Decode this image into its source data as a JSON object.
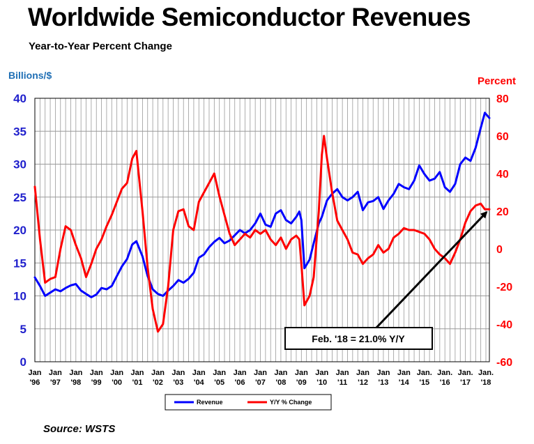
{
  "header": {
    "title": "Worldwide Semiconductor Revenues",
    "subtitle": "Year-to-Year Percent Change",
    "left_axis_label": "Billions/$",
    "right_axis_label": "Percent",
    "source": "Source: WSTS"
  },
  "colors": {
    "revenue": "#0000ff",
    "yoy": "#ff0000",
    "left_axis": "#1f1fcc",
    "right_axis": "#ff0000",
    "grid": "#999999"
  },
  "chart_data": {
    "type": "line",
    "title": "Worldwide Semiconductor Revenues",
    "subtitle": "Year-to-Year Percent Change",
    "y_left": {
      "label": "Billions/$",
      "min": 0,
      "max": 40,
      "ticks": [
        "0",
        "5",
        "10",
        "15",
        "20",
        "25",
        "30",
        "35",
        "40"
      ]
    },
    "y_right": {
      "label": "Percent",
      "min": -60,
      "max": 80,
      "ticks": [
        "-60",
        "-40",
        "-20",
        "0",
        "20",
        "40",
        "60",
        "80"
      ]
    },
    "x_start": 1996,
    "x_end": 2018.17,
    "x_ticks": [
      {
        "top": "Jan",
        "bottom": "'96"
      },
      {
        "top": "Jan",
        "bottom": "'97"
      },
      {
        "top": "Jan",
        "bottom": "'98"
      },
      {
        "top": "Jan",
        "bottom": "'99"
      },
      {
        "top": "Jan",
        "bottom": "'00"
      },
      {
        "top": "Jan",
        "bottom": "'01"
      },
      {
        "top": "Jan",
        "bottom": "'02"
      },
      {
        "top": "Jan",
        "bottom": "'03"
      },
      {
        "top": "Jan",
        "bottom": "'04"
      },
      {
        "top": "Jan",
        "bottom": "'05"
      },
      {
        "top": "Jan",
        "bottom": "'06"
      },
      {
        "top": "Jan",
        "bottom": "'07"
      },
      {
        "top": "Jan",
        "bottom": "'08"
      },
      {
        "top": "Jan",
        "bottom": "'09"
      },
      {
        "top": "Jan",
        "bottom": "'10"
      },
      {
        "top": "Jan",
        "bottom": "'11"
      },
      {
        "top": "Jan",
        "bottom": "'12"
      },
      {
        "top": "Jan",
        "bottom": "'13"
      },
      {
        "top": "Jan",
        "bottom": "'14"
      },
      {
        "top": "Jan.",
        "bottom": "'15"
      },
      {
        "top": "Jan.",
        "bottom": "'16"
      },
      {
        "top": "Jan.",
        "bottom": "'17"
      },
      {
        "top": "Jan.",
        "bottom": "'18"
      }
    ],
    "grid": true,
    "legend_position": "bottom-center",
    "series": [
      {
        "name": "Revenue",
        "axis": "left",
        "points": [
          [
            1996.0,
            12.8
          ],
          [
            1996.25,
            11.5
          ],
          [
            1996.5,
            10.0
          ],
          [
            1996.75,
            10.5
          ],
          [
            1997.0,
            11.0
          ],
          [
            1997.25,
            10.7
          ],
          [
            1997.5,
            11.2
          ],
          [
            1997.75,
            11.6
          ],
          [
            1998.0,
            11.8
          ],
          [
            1998.25,
            10.8
          ],
          [
            1998.5,
            10.3
          ],
          [
            1998.75,
            9.8
          ],
          [
            1999.0,
            10.2
          ],
          [
            1999.25,
            11.2
          ],
          [
            1999.5,
            11.0
          ],
          [
            1999.75,
            11.5
          ],
          [
            2000.0,
            13.0
          ],
          [
            2000.25,
            14.5
          ],
          [
            2000.5,
            15.6
          ],
          [
            2000.75,
            17.8
          ],
          [
            2000.95,
            18.3
          ],
          [
            2001.25,
            16.0
          ],
          [
            2001.5,
            13.0
          ],
          [
            2001.75,
            11.0
          ],
          [
            2002.0,
            10.3
          ],
          [
            2002.25,
            10.0
          ],
          [
            2002.5,
            10.8
          ],
          [
            2002.75,
            11.5
          ],
          [
            2003.0,
            12.4
          ],
          [
            2003.25,
            12.0
          ],
          [
            2003.5,
            12.6
          ],
          [
            2003.75,
            13.5
          ],
          [
            2004.0,
            15.8
          ],
          [
            2004.25,
            16.3
          ],
          [
            2004.5,
            17.4
          ],
          [
            2004.75,
            18.2
          ],
          [
            2005.0,
            18.8
          ],
          [
            2005.25,
            18.0
          ],
          [
            2005.5,
            18.4
          ],
          [
            2005.75,
            19.2
          ],
          [
            2006.0,
            20.0
          ],
          [
            2006.25,
            19.5
          ],
          [
            2006.5,
            20.0
          ],
          [
            2006.75,
            21.0
          ],
          [
            2007.0,
            22.5
          ],
          [
            2007.25,
            20.8
          ],
          [
            2007.5,
            20.5
          ],
          [
            2007.75,
            22.5
          ],
          [
            2008.0,
            23.0
          ],
          [
            2008.25,
            21.5
          ],
          [
            2008.5,
            21.0
          ],
          [
            2008.75,
            22.0
          ],
          [
            2008.9,
            22.8
          ],
          [
            2009.0,
            21.5
          ],
          [
            2009.15,
            14.2
          ],
          [
            2009.4,
            15.5
          ],
          [
            2009.6,
            18.0
          ],
          [
            2009.85,
            21.0
          ],
          [
            2010.0,
            22.0
          ],
          [
            2010.25,
            24.5
          ],
          [
            2010.5,
            25.5
          ],
          [
            2010.75,
            26.2
          ],
          [
            2011.0,
            25.0
          ],
          [
            2011.25,
            24.5
          ],
          [
            2011.5,
            25.0
          ],
          [
            2011.75,
            25.8
          ],
          [
            2012.0,
            23.0
          ],
          [
            2012.25,
            24.2
          ],
          [
            2012.5,
            24.4
          ],
          [
            2012.75,
            25.0
          ],
          [
            2013.0,
            23.2
          ],
          [
            2013.25,
            24.5
          ],
          [
            2013.5,
            25.5
          ],
          [
            2013.75,
            27.0
          ],
          [
            2014.0,
            26.5
          ],
          [
            2014.25,
            26.2
          ],
          [
            2014.5,
            27.5
          ],
          [
            2014.75,
            29.8
          ],
          [
            2015.0,
            28.5
          ],
          [
            2015.25,
            27.5
          ],
          [
            2015.5,
            27.8
          ],
          [
            2015.75,
            28.8
          ],
          [
            2016.0,
            26.5
          ],
          [
            2016.25,
            25.8
          ],
          [
            2016.5,
            27.0
          ],
          [
            2016.75,
            30.0
          ],
          [
            2017.0,
            31.0
          ],
          [
            2017.25,
            30.5
          ],
          [
            2017.5,
            32.5
          ],
          [
            2017.75,
            35.5
          ],
          [
            2017.95,
            37.8
          ],
          [
            2018.17,
            37.0
          ]
        ]
      },
      {
        "name": "Y/Y % Change",
        "axis": "right",
        "points": [
          [
            1996.0,
            33.0
          ],
          [
            1996.25,
            5.0
          ],
          [
            1996.5,
            -18.0
          ],
          [
            1996.75,
            -16.0
          ],
          [
            1997.0,
            -15.0
          ],
          [
            1997.25,
            0.0
          ],
          [
            1997.5,
            12.0
          ],
          [
            1997.75,
            10.0
          ],
          [
            1998.0,
            2.0
          ],
          [
            1998.25,
            -5.0
          ],
          [
            1998.5,
            -15.0
          ],
          [
            1998.75,
            -8.0
          ],
          [
            1999.0,
            0.0
          ],
          [
            1999.25,
            5.0
          ],
          [
            1999.5,
            12.0
          ],
          [
            1999.75,
            18.0
          ],
          [
            2000.0,
            25.0
          ],
          [
            2000.25,
            32.0
          ],
          [
            2000.5,
            35.0
          ],
          [
            2000.75,
            48.0
          ],
          [
            2000.95,
            52.0
          ],
          [
            2001.25,
            20.0
          ],
          [
            2001.5,
            -10.0
          ],
          [
            2001.75,
            -32.0
          ],
          [
            2002.0,
            -44.0
          ],
          [
            2002.25,
            -40.0
          ],
          [
            2002.5,
            -20.0
          ],
          [
            2002.75,
            10.0
          ],
          [
            2003.0,
            20.0
          ],
          [
            2003.25,
            21.0
          ],
          [
            2003.5,
            12.0
          ],
          [
            2003.75,
            10.0
          ],
          [
            2004.0,
            25.0
          ],
          [
            2004.25,
            30.0
          ],
          [
            2004.5,
            35.0
          ],
          [
            2004.75,
            40.0
          ],
          [
            2005.0,
            28.0
          ],
          [
            2005.25,
            18.0
          ],
          [
            2005.5,
            8.0
          ],
          [
            2005.75,
            2.0
          ],
          [
            2006.0,
            5.0
          ],
          [
            2006.25,
            8.0
          ],
          [
            2006.5,
            6.0
          ],
          [
            2006.75,
            10.0
          ],
          [
            2007.0,
            8.0
          ],
          [
            2007.25,
            10.0
          ],
          [
            2007.5,
            5.0
          ],
          [
            2007.75,
            2.0
          ],
          [
            2008.0,
            6.0
          ],
          [
            2008.25,
            0.0
          ],
          [
            2008.5,
            5.0
          ],
          [
            2008.75,
            7.0
          ],
          [
            2008.9,
            5.0
          ],
          [
            2009.0,
            -8.0
          ],
          [
            2009.15,
            -30.0
          ],
          [
            2009.4,
            -25.0
          ],
          [
            2009.6,
            -15.0
          ],
          [
            2009.85,
            20.0
          ],
          [
            2010.0,
            50.0
          ],
          [
            2010.1,
            60.0
          ],
          [
            2010.25,
            48.0
          ],
          [
            2010.5,
            30.0
          ],
          [
            2010.75,
            15.0
          ],
          [
            2011.0,
            10.0
          ],
          [
            2011.25,
            5.0
          ],
          [
            2011.5,
            -2.0
          ],
          [
            2011.75,
            -3.0
          ],
          [
            2012.0,
            -8.0
          ],
          [
            2012.25,
            -5.0
          ],
          [
            2012.5,
            -3.0
          ],
          [
            2012.75,
            2.0
          ],
          [
            2013.0,
            -2.0
          ],
          [
            2013.25,
            0.0
          ],
          [
            2013.5,
            6.0
          ],
          [
            2013.75,
            8.0
          ],
          [
            2014.0,
            11.0
          ],
          [
            2014.25,
            10.0
          ],
          [
            2014.5,
            10.0
          ],
          [
            2014.75,
            9.0
          ],
          [
            2015.0,
            8.0
          ],
          [
            2015.25,
            5.0
          ],
          [
            2015.5,
            0.0
          ],
          [
            2015.75,
            -3.0
          ],
          [
            2016.0,
            -5.0
          ],
          [
            2016.25,
            -8.0
          ],
          [
            2016.5,
            -2.0
          ],
          [
            2016.75,
            5.0
          ],
          [
            2017.0,
            14.0
          ],
          [
            2017.25,
            20.0
          ],
          [
            2017.5,
            23.0
          ],
          [
            2017.75,
            24.0
          ],
          [
            2017.95,
            21.0
          ],
          [
            2018.17,
            21.0
          ]
        ]
      }
    ],
    "annotation": {
      "text": "Feb. '18 = 21.0% Y/Y",
      "target_x": 2018.17,
      "target_y_right": 21.0
    }
  }
}
